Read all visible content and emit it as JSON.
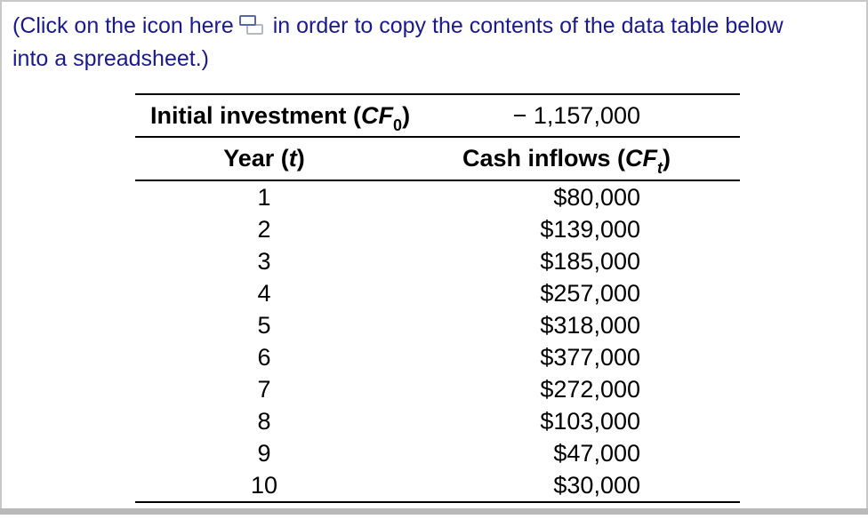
{
  "instruction": {
    "line1_before_icon": "(Click on the icon here",
    "icon": "copy-icon",
    "line1_after_icon": "in order to copy the contents of the data table below",
    "line2": "into a spreadsheet.)"
  },
  "table": {
    "initial_investment": {
      "label_prefix": "Initial investment (",
      "label_var": "CF",
      "label_sub": "0",
      "label_suffix": ")",
      "value": "− 1,157,000"
    },
    "headers": {
      "year_prefix": "Year (",
      "year_var": "t",
      "year_suffix": ")",
      "inflows_prefix": "Cash inflows (",
      "inflows_var": "CF",
      "inflows_sub": "t",
      "inflows_suffix": ")"
    },
    "rows": [
      {
        "year": "1",
        "cash_inflow": "$80,000"
      },
      {
        "year": "2",
        "cash_inflow": "$139,000"
      },
      {
        "year": "3",
        "cash_inflow": "$185,000"
      },
      {
        "year": "4",
        "cash_inflow": "$257,000"
      },
      {
        "year": "5",
        "cash_inflow": "$318,000"
      },
      {
        "year": "6",
        "cash_inflow": "$377,000"
      },
      {
        "year": "7",
        "cash_inflow": "$272,000"
      },
      {
        "year": "8",
        "cash_inflow": "$103,000"
      },
      {
        "year": "9",
        "cash_inflow": "$47,000"
      },
      {
        "year": "10",
        "cash_inflow": "$30,000"
      }
    ]
  },
  "colors": {
    "instruction_text": "#1a1a8c",
    "table_text": "#000000",
    "table_rule": "#000000",
    "panel_border": "#c8c8c8",
    "bottom_bar": "#b9b9b9",
    "icon_blue": "#5a66ab",
    "icon_gray": "#b4b8c6"
  }
}
